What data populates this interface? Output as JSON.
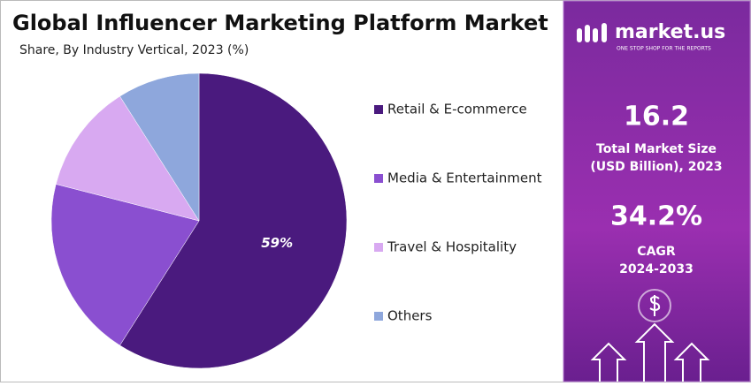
{
  "chart_data": {
    "type": "pie",
    "title": "Global Influencer Marketing Platform Market",
    "subtitle": "Share, By Industry Vertical, 2023 (%)",
    "categories": [
      "Retail & E-commerce",
      "Media & Entertainment",
      "Travel & Hospitality",
      "Others"
    ],
    "values": [
      59,
      20,
      12,
      9
    ],
    "value_labels": [
      "59%",
      null,
      null,
      null
    ],
    "colors": [
      "#4a1a7e",
      "#8a4fd0",
      "#d8a9f1",
      "#8ea7dc"
    ]
  },
  "panel": {
    "brand": "market.us",
    "tagline": "ONE STOP SHOP FOR THE REPORTS",
    "market_size": "16.2",
    "market_size_label_1": "Total Market Size",
    "market_size_label_2": "(USD Billion), 2023",
    "cagr": "34.2%",
    "cagr_label_1": "CAGR",
    "cagr_label_2": "2024-2033"
  }
}
